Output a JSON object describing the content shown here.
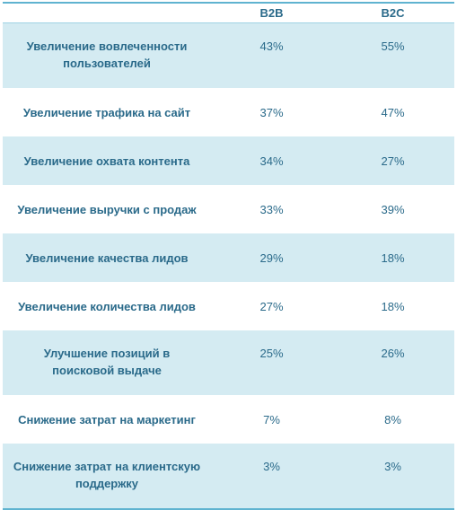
{
  "table": {
    "columns": [
      "",
      "B2B",
      "B2C"
    ],
    "rows": [
      {
        "label": "Увеличение вовлеченности пользователей",
        "b2b": "43%",
        "b2c": "55%"
      },
      {
        "label": "Увеличение трафика на сайт",
        "b2b": "37%",
        "b2c": "47%"
      },
      {
        "label": "Увеличение охвата контента",
        "b2b": "34%",
        "b2c": "27%"
      },
      {
        "label": "Увеличение выручки с продаж",
        "b2b": "33%",
        "b2c": "39%"
      },
      {
        "label": "Увеличение качества лидов",
        "b2b": "29%",
        "b2c": "18%"
      },
      {
        "label": "Увеличение количества лидов",
        "b2b": "27%",
        "b2c": "18%"
      },
      {
        "label": "Улучшение позиций в поисковой выдаче",
        "b2b": "25%",
        "b2c": "26%"
      },
      {
        "label": "Снижение затрат на маркетинг",
        "b2b": "7%",
        "b2c": "8%"
      },
      {
        "label": "Снижение затрат на клиентскую поддержку",
        "b2b": "3%",
        "b2c": "3%"
      }
    ]
  },
  "colors": {
    "text": "#2a6a8a",
    "shaded_row": "#d4ebf2",
    "rule": "#5fb3d0"
  }
}
